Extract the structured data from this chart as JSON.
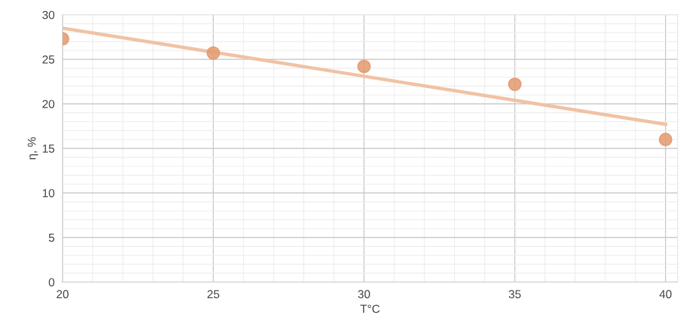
{
  "chart_data": {
    "type": "scatter",
    "xlabel": "T°C",
    "ylabel": "η, %",
    "xlim": [
      20,
      40.4
    ],
    "ylim": [
      0,
      30
    ],
    "xticks": [
      20,
      25,
      30,
      35,
      40
    ],
    "yticks": [
      0,
      5,
      10,
      15,
      20,
      25,
      30
    ],
    "grid": true,
    "marker": "circle",
    "series": [
      {
        "color": "#e39a6e",
        "x": [
          20,
          25,
          30,
          35,
          40
        ],
        "values": [
          27.3,
          25.7,
          24.2,
          22.2,
          16.0
        ]
      },
      {
        "type": "line",
        "color": "#f0c2a4",
        "x": [
          20,
          40
        ],
        "values": [
          28.5,
          17.7
        ],
        "marker": "none"
      }
    ]
  }
}
